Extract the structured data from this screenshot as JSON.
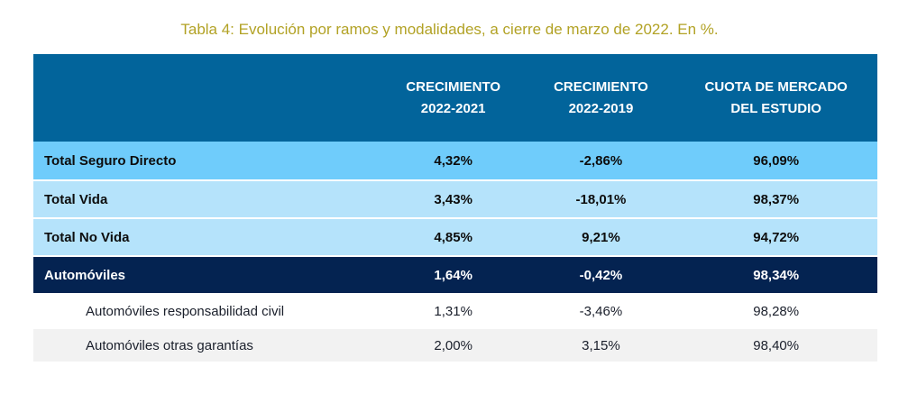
{
  "title": "Tabla 4: Evolución por ramos y modalidades, a cierre de marzo de 2022. En %.",
  "chart_data": {
    "type": "table",
    "title": "Tabla 4: Evolución por ramos y modalidades, a cierre de marzo de 2022. En %.",
    "columns": [
      "",
      "CRECIMIENTO 2022-2021",
      "CRECIMIENTO 2022-2019",
      "CUOTA DE MERCADO DEL ESTUDIO"
    ],
    "rows": [
      {
        "label": "Total Seguro Directo",
        "values": [
          "4,32%",
          "-2,86%",
          "96,09%"
        ],
        "style": "highlight"
      },
      {
        "label": "Total Vida",
        "values": [
          "3,43%",
          "-18,01%",
          "98,37%"
        ],
        "style": "light"
      },
      {
        "label": "Total No Vida",
        "values": [
          "4,85%",
          "9,21%",
          "94,72%"
        ],
        "style": "light"
      },
      {
        "label": "Automóviles",
        "values": [
          "1,64%",
          "-0,42%",
          "98,34%"
        ],
        "style": "dark"
      },
      {
        "label": "Automóviles responsabilidad civil",
        "values": [
          "1,31%",
          "-3,46%",
          "98,28%"
        ],
        "style": "sub-white"
      },
      {
        "label": "Automóviles otras garantías",
        "values": [
          "2,00%",
          "3,15%",
          "98,40%"
        ],
        "style": "sub-gray"
      }
    ]
  },
  "colors": {
    "title_text": "#b2a225",
    "header_bg": "#02649b",
    "header_text": "#ffffff",
    "row_highlight_bg": "#6fccfb",
    "row_light_bg": "#b5e3fb",
    "row_dark_bg": "#042351",
    "row_dark_text": "#ffffff",
    "row_alt_bg": "#f2f2f2",
    "body_text": "#0d0d0d",
    "sub_text": "#1a1f2b"
  }
}
